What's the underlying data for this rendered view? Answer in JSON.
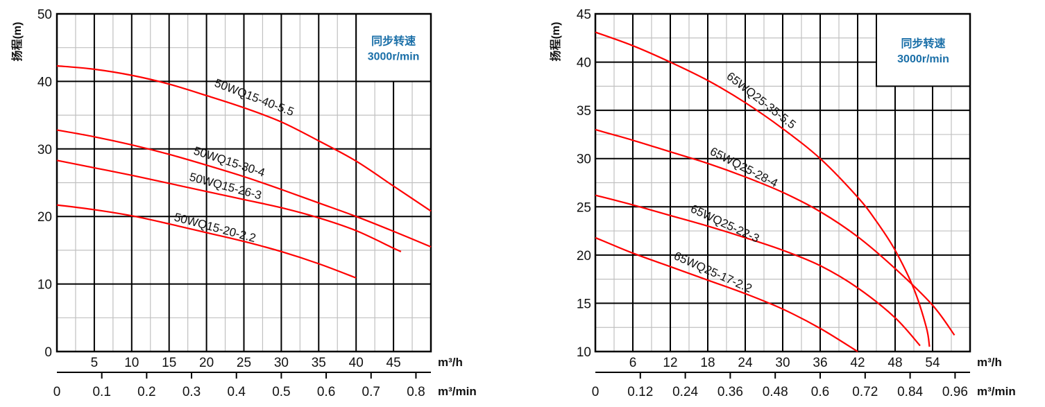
{
  "colors": {
    "curve": "#ff0000",
    "major_grid": "#000000",
    "minor_grid": "#c0c0c0",
    "legend_text": "#1a6fa8"
  },
  "chart_data": [
    {
      "type": "line",
      "ylabel": "扬程(m)",
      "xlabel_primary": "m³/h",
      "xlabel_secondary": "m³/min",
      "xlim": [
        0,
        50
      ],
      "ylim": [
        0,
        50
      ],
      "xticks": [
        5,
        10,
        15,
        20,
        25,
        30,
        35,
        40,
        45
      ],
      "xticks_secondary": [
        0,
        0.1,
        0.2,
        0.3,
        0.4,
        0.5,
        0.6,
        0.7,
        0.8
      ],
      "yticks": [
        0,
        10,
        20,
        30,
        40,
        50
      ],
      "grid": true,
      "legend": {
        "line1": "同步转速",
        "line2": "3000r/min",
        "placement": "top-right"
      },
      "series": [
        {
          "name": "50WQ15-40-5.5",
          "x": [
            0,
            5,
            10,
            15,
            20,
            25,
            30,
            35,
            40,
            45,
            50
          ],
          "y": [
            42.3,
            41.8,
            40.9,
            39.6,
            37.9,
            36.1,
            34.0,
            31.2,
            28.2,
            24.5,
            20.8
          ]
        },
        {
          "name": "50WQ15-30-4",
          "x": [
            0,
            5,
            10,
            15,
            20,
            25,
            30,
            35,
            40,
            45,
            50
          ],
          "y": [
            32.8,
            31.8,
            30.6,
            29.2,
            27.6,
            25.9,
            24.0,
            22.0,
            20.0,
            17.8,
            15.5
          ]
        },
        {
          "name": "50WQ15-26-3",
          "x": [
            0,
            5,
            10,
            15,
            20,
            25,
            30,
            35,
            40,
            45,
            46
          ],
          "y": [
            28.3,
            27.2,
            26.1,
            24.9,
            23.7,
            22.5,
            21.3,
            19.8,
            17.9,
            15.3,
            14.8
          ]
        },
        {
          "name": "50WQ15-20-2.2",
          "x": [
            0,
            5,
            10,
            15,
            20,
            25,
            30,
            35,
            40
          ],
          "y": [
            21.7,
            21.0,
            20.1,
            18.9,
            17.6,
            16.3,
            14.8,
            13.0,
            10.9
          ]
        }
      ]
    },
    {
      "type": "line",
      "ylabel": "扬程(m)",
      "xlabel_primary": "m³/h",
      "xlabel_secondary": "m³/min",
      "xlim": [
        0,
        60
      ],
      "ylim": [
        10,
        45
      ],
      "xticks": [
        6,
        12,
        18,
        24,
        30,
        36,
        42,
        48,
        54
      ],
      "xticks_secondary": [
        0,
        0.12,
        0.24,
        0.36,
        0.48,
        0.6,
        0.72,
        0.84,
        0.96
      ],
      "yticks": [
        10,
        15,
        20,
        25,
        30,
        35,
        40,
        45
      ],
      "grid": true,
      "legend": {
        "line1": "同步转速",
        "line2": "3000r/min",
        "placement": "top-right"
      },
      "series": [
        {
          "name": "65WQ25-35-5.5",
          "x": [
            0,
            6,
            12,
            18,
            24,
            30,
            36,
            42,
            45,
            48,
            51,
            53,
            53.5
          ],
          "y": [
            43.1,
            41.7,
            40.0,
            38.1,
            35.8,
            33.1,
            30.0,
            26.0,
            23.5,
            20.5,
            16.5,
            12.5,
            10.5
          ]
        },
        {
          "name": "65WQ25-28-4",
          "x": [
            0,
            6,
            12,
            18,
            24,
            30,
            36,
            42,
            48,
            54,
            57.5
          ],
          "y": [
            33.0,
            31.9,
            30.7,
            29.5,
            28.1,
            26.5,
            24.5,
            21.9,
            18.6,
            14.8,
            11.7
          ]
        },
        {
          "name": "65WQ25-22-3",
          "x": [
            0,
            6,
            12,
            18,
            24,
            30,
            36,
            42,
            48,
            52
          ],
          "y": [
            26.2,
            25.2,
            24.1,
            23.0,
            21.8,
            20.5,
            18.9,
            16.6,
            13.5,
            10.6
          ]
        },
        {
          "name": "65WQ25-17-2.2",
          "x": [
            0,
            6,
            12,
            18,
            24,
            30,
            36,
            42
          ],
          "y": [
            21.8,
            20.2,
            18.8,
            17.4,
            16.0,
            14.4,
            12.4,
            10.0
          ]
        }
      ]
    }
  ]
}
